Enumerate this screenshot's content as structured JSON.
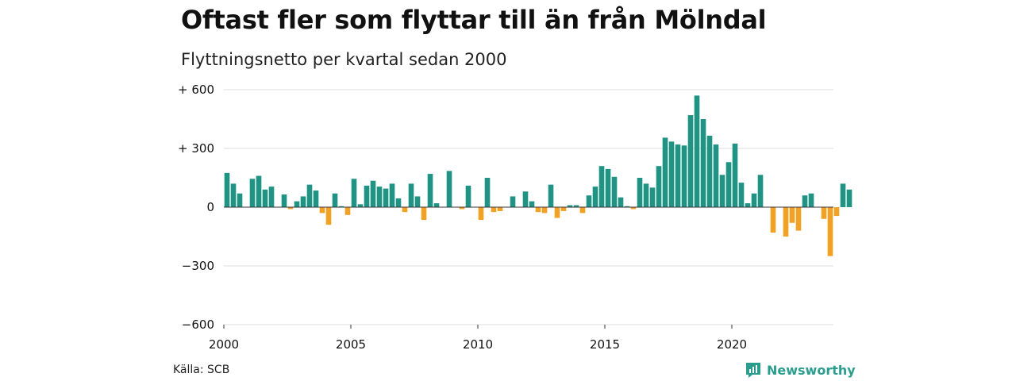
{
  "title": "Oftast fler som flyttar till än från Mölndal",
  "subtitle": "Flyttningsnetto per kvartal sedan 2000",
  "source": "Källa: SCB",
  "brand": "Newsworthy",
  "colors": {
    "positive": "#1f9384",
    "negative": "#f3a123",
    "grid": "#dddddd",
    "axis": "#333333",
    "brand": "#2a9d8f"
  },
  "chart_data": {
    "type": "bar",
    "ylim": [
      -600,
      600
    ],
    "yticks": [
      {
        "value": 600,
        "label": "+ 600"
      },
      {
        "value": 300,
        "label": "+ 300"
      },
      {
        "value": 0,
        "label": "0"
      },
      {
        "value": -300,
        "label": "−300"
      },
      {
        "value": -600,
        "label": "−600"
      }
    ],
    "xticks": [
      {
        "value": 2000,
        "label": "2000"
      },
      {
        "value": 2005,
        "label": "2005"
      },
      {
        "value": 2010,
        "label": "2010"
      },
      {
        "value": 2015,
        "label": "2015"
      },
      {
        "value": 2020,
        "label": "2020"
      }
    ],
    "start_year": 2000,
    "quarters_per_year": 4,
    "values": [
      175,
      120,
      70,
      0,
      145,
      160,
      90,
      105,
      0,
      65,
      -10,
      30,
      55,
      115,
      85,
      -30,
      -90,
      70,
      5,
      -40,
      145,
      15,
      110,
      135,
      105,
      95,
      120,
      45,
      -25,
      120,
      55,
      -65,
      170,
      20,
      0,
      185,
      0,
      -10,
      110,
      0,
      -65,
      150,
      -25,
      -20,
      0,
      55,
      0,
      80,
      30,
      -25,
      -30,
      115,
      -55,
      -20,
      10,
      10,
      -30,
      60,
      105,
      210,
      195,
      155,
      50,
      5,
      -10,
      150,
      120,
      100,
      210,
      355,
      335,
      320,
      315,
      470,
      570,
      450,
      365,
      320,
      165,
      230,
      325,
      125,
      20,
      70,
      165,
      0,
      -130,
      0,
      -150,
      -80,
      -120,
      60,
      70,
      0,
      -60,
      -250,
      -45,
      120,
      90
    ]
  }
}
